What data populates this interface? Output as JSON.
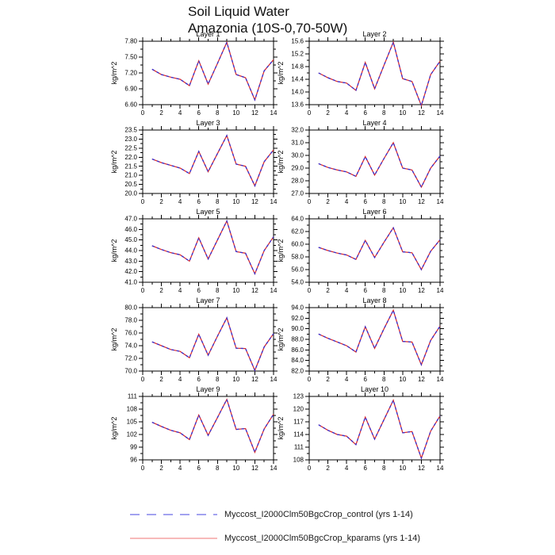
{
  "title": {
    "line1": "Soil Liquid Water",
    "line2": "Amazonia (10S-0,70-50W)"
  },
  "ylabel": "kg/m^2",
  "x_axis": {
    "range": [
      0,
      14
    ],
    "ticks": [
      0,
      2,
      4,
      6,
      8,
      10,
      12,
      14
    ],
    "minor_ticks": [
      1,
      3,
      5,
      7,
      9,
      11,
      13
    ]
  },
  "series_meta": {
    "control": {
      "style": "dashed",
      "plot_color": "#2e2ed6",
      "legend_color": "#8484ec"
    },
    "kparams": {
      "style": "solid",
      "plot_color": "#dc2a2a",
      "legend_color": "#f29090"
    }
  },
  "legend": {
    "entries": [
      {
        "label": "Myccost_I2000Clm50BgcCrop_control (yrs 1-14)",
        "series": "control"
      },
      {
        "label": "Myccost_I2000Clm50BgcCrop_kparams (yrs 1-14)",
        "series": "kparams"
      }
    ]
  },
  "chart_data": [
    {
      "type": "line",
      "title": "Layer 1",
      "x": [
        1,
        2,
        3,
        4,
        5,
        6,
        7,
        8,
        9,
        10,
        11,
        12,
        13,
        14
      ],
      "ylim": [
        6.6,
        7.8
      ],
      "ytick_step": 0.3,
      "ydecimals": 2,
      "series": [
        {
          "name": "Myccost_I2000Clm50BgcCrop_control (yrs 1-14)",
          "values": [
            7.27,
            7.17,
            7.12,
            7.08,
            6.96,
            7.43,
            6.99,
            7.38,
            7.78,
            7.17,
            7.11,
            6.69,
            7.24,
            7.45
          ]
        },
        {
          "name": "Myccost_I2000Clm50BgcCrop_kparams (yrs 1-14)",
          "values": [
            7.27,
            7.17,
            7.12,
            7.08,
            6.96,
            7.43,
            6.99,
            7.38,
            7.78,
            7.17,
            7.11,
            6.69,
            7.24,
            7.45
          ]
        }
      ]
    },
    {
      "type": "line",
      "title": "Layer 2",
      "x": [
        1,
        2,
        3,
        4,
        5,
        6,
        7,
        8,
        9,
        10,
        11,
        12,
        13,
        14
      ],
      "ylim": [
        13.6,
        15.6
      ],
      "ytick_step": 0.4,
      "ydecimals": 1,
      "series": [
        {
          "name": "Myccost_I2000Clm50BgcCrop_control (yrs 1-14)",
          "values": [
            14.6,
            14.45,
            14.33,
            14.28,
            14.05,
            14.93,
            14.1,
            14.84,
            15.57,
            14.42,
            14.33,
            13.57,
            14.55,
            14.97
          ]
        },
        {
          "name": "Myccost_I2000Clm50BgcCrop_kparams (yrs 1-14)",
          "values": [
            14.6,
            14.45,
            14.33,
            14.28,
            14.05,
            14.93,
            14.1,
            14.84,
            15.57,
            14.42,
            14.33,
            13.57,
            14.55,
            14.97
          ]
        }
      ]
    },
    {
      "type": "line",
      "title": "Layer 3",
      "x": [
        1,
        2,
        3,
        4,
        5,
        6,
        7,
        8,
        9,
        10,
        11,
        12,
        13,
        14
      ],
      "ylim": [
        20.0,
        23.5
      ],
      "ytick_step": 0.5,
      "ydecimals": 1,
      "series": [
        {
          "name": "Myccost_I2000Clm50BgcCrop_control (yrs 1-14)",
          "values": [
            21.9,
            21.7,
            21.55,
            21.4,
            21.1,
            22.32,
            21.2,
            22.2,
            23.2,
            21.62,
            21.5,
            20.42,
            21.75,
            22.4
          ]
        },
        {
          "name": "Myccost_I2000Clm50BgcCrop_kparams (yrs 1-14)",
          "values": [
            21.9,
            21.7,
            21.55,
            21.4,
            21.1,
            22.32,
            21.2,
            22.2,
            23.2,
            21.62,
            21.5,
            20.42,
            21.75,
            22.4
          ]
        }
      ]
    },
    {
      "type": "line",
      "title": "Layer 4",
      "x": [
        1,
        2,
        3,
        4,
        5,
        6,
        7,
        8,
        9,
        10,
        11,
        12,
        13,
        14
      ],
      "ylim": [
        27.0,
        32.0
      ],
      "ytick_step": 1.0,
      "ydecimals": 1,
      "series": [
        {
          "name": "Myccost_I2000Clm50BgcCrop_control (yrs 1-14)",
          "values": [
            29.35,
            29.05,
            28.85,
            28.7,
            28.35,
            29.9,
            28.45,
            29.75,
            31.0,
            29.0,
            28.85,
            27.5,
            29.0,
            29.95
          ]
        },
        {
          "name": "Myccost_I2000Clm50BgcCrop_kparams (yrs 1-14)",
          "values": [
            29.35,
            29.05,
            28.85,
            28.7,
            28.35,
            29.9,
            28.45,
            29.75,
            31.0,
            29.0,
            28.85,
            27.5,
            29.0,
            29.95
          ]
        }
      ]
    },
    {
      "type": "line",
      "title": "Layer 5",
      "x": [
        1,
        2,
        3,
        4,
        5,
        6,
        7,
        8,
        9,
        10,
        11,
        12,
        13,
        14
      ],
      "ylim": [
        41.0,
        47.0
      ],
      "ytick_step": 1.0,
      "ydecimals": 1,
      "series": [
        {
          "name": "Myccost_I2000Clm50BgcCrop_control (yrs 1-14)",
          "values": [
            44.45,
            44.1,
            43.8,
            43.6,
            43.0,
            45.2,
            43.2,
            45.0,
            46.8,
            43.9,
            43.75,
            41.8,
            44.0,
            45.3
          ]
        },
        {
          "name": "Myccost_I2000Clm50BgcCrop_kparams (yrs 1-14)",
          "values": [
            44.45,
            44.1,
            43.8,
            43.6,
            43.0,
            45.2,
            43.2,
            45.0,
            46.8,
            43.9,
            43.75,
            41.8,
            44.0,
            45.3
          ]
        }
      ]
    },
    {
      "type": "line",
      "title": "Layer 6",
      "x": [
        1,
        2,
        3,
        4,
        5,
        6,
        7,
        8,
        9,
        10,
        11,
        12,
        13,
        14
      ],
      "ylim": [
        54.0,
        64.0
      ],
      "ytick_step": 2.0,
      "ydecimals": 1,
      "series": [
        {
          "name": "Myccost_I2000Clm50BgcCrop_control (yrs 1-14)",
          "values": [
            59.5,
            59.0,
            58.6,
            58.3,
            57.6,
            60.6,
            57.9,
            60.3,
            62.6,
            58.8,
            58.65,
            56.0,
            58.9,
            60.7
          ]
        },
        {
          "name": "Myccost_I2000Clm50BgcCrop_kparams (yrs 1-14)",
          "values": [
            59.5,
            59.0,
            58.6,
            58.3,
            57.6,
            60.6,
            57.9,
            60.3,
            62.6,
            58.8,
            58.65,
            56.0,
            58.9,
            60.7
          ]
        }
      ]
    },
    {
      "type": "line",
      "title": "Layer 7",
      "x": [
        1,
        2,
        3,
        4,
        5,
        6,
        7,
        8,
        9,
        10,
        11,
        12,
        13,
        14
      ],
      "ylim": [
        70.0,
        80.0
      ],
      "ytick_step": 2.0,
      "ydecimals": 1,
      "series": [
        {
          "name": "Myccost_I2000Clm50BgcCrop_control (yrs 1-14)",
          "values": [
            74.6,
            74.0,
            73.4,
            73.1,
            72.1,
            75.8,
            72.5,
            75.5,
            78.4,
            73.6,
            73.55,
            70.1,
            73.8,
            75.9
          ]
        },
        {
          "name": "Myccost_I2000Clm50BgcCrop_kparams (yrs 1-14)",
          "values": [
            74.6,
            74.0,
            73.4,
            73.1,
            72.1,
            75.8,
            72.5,
            75.5,
            78.4,
            73.6,
            73.55,
            70.1,
            73.8,
            75.9
          ]
        }
      ]
    },
    {
      "type": "line",
      "title": "Layer 8",
      "x": [
        1,
        2,
        3,
        4,
        5,
        6,
        7,
        8,
        9,
        10,
        11,
        12,
        13,
        14
      ],
      "ylim": [
        82.0,
        94.0
      ],
      "ytick_step": 2.0,
      "ydecimals": 1,
      "series": [
        {
          "name": "Myccost_I2000Clm50BgcCrop_control (yrs 1-14)",
          "values": [
            89.0,
            88.2,
            87.5,
            86.8,
            85.6,
            90.4,
            86.3,
            90.0,
            93.5,
            87.6,
            87.5,
            83.2,
            87.8,
            90.5
          ]
        },
        {
          "name": "Myccost_I2000Clm50BgcCrop_kparams (yrs 1-14)",
          "values": [
            89.0,
            88.2,
            87.5,
            86.8,
            85.6,
            90.4,
            86.3,
            90.0,
            93.5,
            87.6,
            87.5,
            83.2,
            87.8,
            90.5
          ]
        }
      ]
    },
    {
      "type": "line",
      "title": "Layer 9",
      "x": [
        1,
        2,
        3,
        4,
        5,
        6,
        7,
        8,
        9,
        10,
        11,
        12,
        13,
        14
      ],
      "ylim": [
        96,
        111
      ],
      "ytick_step": 3,
      "ydecimals": 0,
      "series": [
        {
          "name": "Myccost_I2000Clm50BgcCrop_control (yrs 1-14)",
          "values": [
            104.9,
            103.9,
            103.0,
            102.4,
            100.8,
            106.6,
            101.8,
            106.0,
            110.3,
            103.2,
            103.4,
            97.8,
            103.3,
            106.8
          ]
        },
        {
          "name": "Myccost_I2000Clm50BgcCrop_kparams (yrs 1-14)",
          "values": [
            104.9,
            103.9,
            103.0,
            102.4,
            100.8,
            106.6,
            101.8,
            106.0,
            110.3,
            103.2,
            103.4,
            97.8,
            103.3,
            106.8
          ]
        }
      ]
    },
    {
      "type": "line",
      "title": "Layer 10",
      "x": [
        1,
        2,
        3,
        4,
        5,
        6,
        7,
        8,
        9,
        10,
        11,
        12,
        13,
        14
      ],
      "ylim": [
        108,
        123
      ],
      "ytick_step": 3,
      "ydecimals": 0,
      "series": [
        {
          "name": "Myccost_I2000Clm50BgcCrop_control (yrs 1-14)",
          "values": [
            116.3,
            115.0,
            114.0,
            113.6,
            111.6,
            118.1,
            112.9,
            117.5,
            122.1,
            114.4,
            114.7,
            108.4,
            114.8,
            118.4
          ]
        },
        {
          "name": "Myccost_I2000Clm50BgcCrop_kparams (yrs 1-14)",
          "values": [
            116.3,
            115.0,
            114.0,
            113.6,
            111.6,
            118.1,
            112.9,
            117.5,
            122.1,
            114.4,
            114.7,
            108.4,
            114.8,
            118.4
          ]
        }
      ]
    }
  ]
}
